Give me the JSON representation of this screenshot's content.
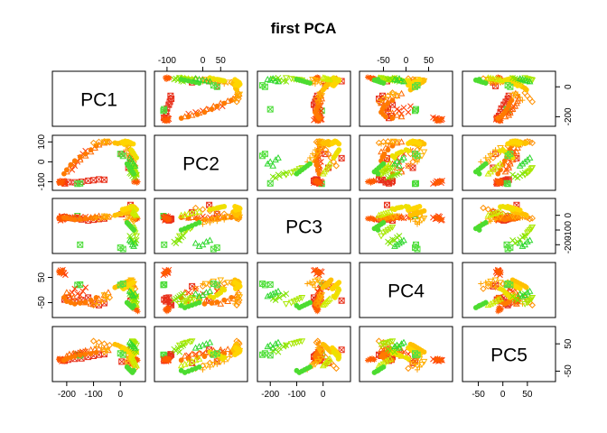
{
  "chart_data": {
    "type": "scatter-matrix",
    "title": "first PCA",
    "variables": [
      "PC1",
      "PC2",
      "PC3",
      "PC4",
      "PC5"
    ],
    "ranges": {
      "PC1": [
        -240,
        80
      ],
      "PC2": [
        -125,
        115
      ],
      "PC3": [
        -235,
        90
      ],
      "PC4": [
        -95,
        95
      ],
      "PC5": [
        -75,
        100
      ]
    },
    "ticks": {
      "PC1": [
        -200,
        -100,
        0
      ],
      "PC2": [
        -100,
        0,
        50
      ],
      "PC3": [
        -200,
        -100,
        0
      ],
      "PC4": [
        -50,
        0,
        50
      ],
      "PC5": [
        -50,
        0,
        50
      ]
    },
    "axis_labels": {
      "bottom": [
        [
          "-200",
          "-100",
          "0"
        ],
        [],
        [
          "-200",
          "-100",
          "0"
        ],
        [],
        [
          "-50",
          "0",
          "50"
        ]
      ],
      "top": [
        [],
        [
          "-100",
          "0",
          "50"
        ],
        [],
        [
          "-50",
          "0",
          "50"
        ],
        []
      ],
      "left": [
        [],
        [
          "-100",
          "0",
          "100"
        ],
        [],
        [
          "-50",
          "50"
        ],
        []
      ],
      "right": [
        [
          "-200",
          "0"
        ],
        [],
        [
          "-200",
          "-100",
          "0"
        ],
        [],
        [
          "-50",
          "50"
        ]
      ]
    },
    "groups": [
      {
        "color": "#e8301a",
        "pch": "square-x",
        "points": [
          [
            -208,
            -108,
            -12,
            -38,
            -12
          ],
          [
            -195,
            -102,
            -18,
            -32,
            -8
          ],
          [
            -170,
            -103,
            -22,
            -45,
            -5
          ],
          [
            -145,
            -100,
            -28,
            -40,
            -3
          ],
          [
            -120,
            -95,
            -35,
            -30,
            2
          ],
          [
            -100,
            -92,
            -30,
            -55,
            6
          ],
          [
            -80,
            -88,
            -26,
            -60,
            10
          ],
          [
            -60,
            -90,
            -22,
            -52,
            12
          ],
          [
            38,
            18,
            70,
            -42,
            28
          ],
          [
            5,
            40,
            8,
            20,
            -15
          ],
          [
            30,
            -30,
            20,
            15,
            -20
          ]
        ]
      },
      {
        "color": "#4ddc3a",
        "pch": "square-x",
        "points": [
          [
            -160,
            -110,
            -5,
            20,
            10
          ],
          [
            -150,
            -108,
            -200,
            22,
            8
          ]
        ]
      },
      {
        "color": "#ff3a00",
        "pch": "x",
        "points": [
          [
            -225,
            -100,
            -20,
            70,
            -5
          ],
          [
            -220,
            -98,
            -10,
            75,
            -8
          ],
          [
            -215,
            -95,
            -30,
            80,
            -10
          ],
          [
            -212,
            -105,
            -25,
            65,
            -12
          ],
          [
            -205,
            -110,
            -15,
            60,
            -6
          ],
          [
            -218,
            -102,
            -5,
            72,
            -14
          ],
          [
            -223,
            -106,
            -35,
            78,
            -9
          ],
          [
            -210,
            -97,
            -22,
            68,
            -11
          ],
          [
            -180,
            -40,
            -18,
            -10,
            8
          ],
          [
            -170,
            -20,
            -12,
            5,
            12
          ],
          [
            -160,
            0,
            -8,
            -15,
            15
          ],
          [
            -150,
            20,
            -15,
            -20,
            18
          ],
          [
            -140,
            40,
            -20,
            -5,
            20
          ],
          [
            -130,
            55,
            -10,
            10,
            22
          ]
        ]
      },
      {
        "color": "#ff5a00",
        "pch": "asterisk",
        "points": [
          [
            -230,
            -100,
            -20,
            75,
            -6
          ],
          [
            -226,
            -103,
            -15,
            70,
            -4
          ],
          [
            -222,
            -99,
            -25,
            72,
            -10
          ],
          [
            -218,
            -108,
            -12,
            66,
            -8
          ],
          [
            -214,
            -96,
            -28,
            79,
            -12
          ],
          [
            -228,
            -106,
            -18,
            68,
            -7
          ],
          [
            60,
            -95,
            -25,
            -80,
            -5
          ],
          [
            55,
            -98,
            -30,
            -70,
            -8
          ],
          [
            50,
            -102,
            -20,
            -75,
            -3
          ],
          [
            65,
            -100,
            -22,
            -85,
            -10
          ],
          [
            58,
            -93,
            -27,
            -72,
            -6
          ],
          [
            62,
            -105,
            -18,
            -78,
            -9
          ]
        ]
      },
      {
        "color": "#ff6a00",
        "pch": "triangle",
        "points": [
          [
            -200,
            -50,
            -10,
            -10,
            5
          ],
          [
            -190,
            -30,
            -15,
            -20,
            12
          ],
          [
            -175,
            -10,
            -20,
            -30,
            15
          ],
          [
            -150,
            10,
            -25,
            -40,
            20
          ],
          [
            -130,
            30,
            -20,
            -50,
            25
          ],
          [
            -110,
            50,
            -15,
            -55,
            28
          ],
          [
            -95,
            70,
            -10,
            -45,
            30
          ],
          [
            -80,
            85,
            -5,
            -35,
            32
          ],
          [
            -60,
            95,
            -8,
            -20,
            30
          ],
          [
            -45,
            100,
            -12,
            -10,
            26
          ]
        ]
      },
      {
        "color": "#ff7a00",
        "pch": "circle",
        "points": [
          [
            -210,
            -60,
            -15,
            -30,
            -10
          ],
          [
            -200,
            -40,
            -20,
            -45,
            -5
          ],
          [
            -185,
            -15,
            -25,
            -50,
            0
          ],
          [
            -170,
            5,
            -30,
            -55,
            4
          ],
          [
            -150,
            25,
            -26,
            -52,
            8
          ],
          [
            -130,
            40,
            -20,
            -48,
            12
          ],
          [
            -110,
            60,
            -18,
            -40,
            14
          ],
          [
            -90,
            80,
            -14,
            -30,
            18
          ]
        ]
      },
      {
        "color": "#ff9000",
        "pch": "diamond",
        "points": [
          [
            -100,
            95,
            -20,
            -60,
            60
          ],
          [
            -80,
            100,
            -25,
            -50,
            55
          ],
          [
            -60,
            102,
            -15,
            -40,
            50
          ],
          [
            -40,
            98,
            -10,
            -30,
            45
          ],
          [
            40,
            40,
            20,
            10,
            -10
          ],
          [
            45,
            20,
            30,
            20,
            -20
          ],
          [
            50,
            0,
            40,
            15,
            -30
          ],
          [
            55,
            -20,
            50,
            5,
            -40
          ],
          [
            35,
            60,
            10,
            25,
            0
          ],
          [
            30,
            80,
            0,
            30,
            10
          ]
        ]
      },
      {
        "color": "#ffa000",
        "pch": "plus",
        "points": [
          [
            -90,
            90,
            -15,
            -55,
            40
          ],
          [
            -70,
            92,
            -20,
            -45,
            35
          ],
          [
            -50,
            95,
            -10,
            -35,
            30
          ],
          [
            20,
            60,
            -30,
            10,
            -15
          ],
          [
            25,
            40,
            -40,
            20,
            -25
          ],
          [
            30,
            20,
            -50,
            30,
            -35
          ],
          [
            35,
            0,
            -60,
            25,
            -45
          ]
        ]
      },
      {
        "color": "#ffb000",
        "pch": "triangle-down",
        "points": [
          [
            -60,
            100,
            -5,
            -20,
            20
          ],
          [
            -50,
            103,
            -12,
            -28,
            25
          ],
          [
            30,
            70,
            -10,
            30,
            -5
          ],
          [
            40,
            50,
            -20,
            40,
            -15
          ],
          [
            45,
            30,
            -30,
            35,
            -25
          ],
          [
            50,
            10,
            -40,
            25,
            -30
          ]
        ]
      },
      {
        "color": "#ffc000",
        "pch": "circle",
        "points": [
          [
            0,
            95,
            10,
            20,
            40
          ],
          [
            10,
            100,
            15,
            25,
            35
          ],
          [
            20,
            102,
            20,
            30,
            30
          ],
          [
            30,
            98,
            25,
            35,
            25
          ],
          [
            -10,
            92,
            5,
            15,
            45
          ],
          [
            -20,
            95,
            0,
            10,
            48
          ],
          [
            40,
            90,
            30,
            40,
            20
          ],
          [
            25,
            85,
            22,
            28,
            28
          ],
          [
            15,
            88,
            18,
            22,
            33
          ],
          [
            5,
            96,
            12,
            18,
            38
          ]
        ]
      },
      {
        "color": "#ffd500",
        "pch": "circle",
        "points": [
          [
            8,
            100,
            40,
            10,
            30
          ],
          [
            18,
            104,
            45,
            15,
            25
          ],
          [
            28,
            102,
            50,
            20,
            20
          ],
          [
            38,
            96,
            55,
            25,
            15
          ],
          [
            48,
            90,
            60,
            30,
            10
          ],
          [
            12,
            92,
            35,
            5,
            35
          ],
          [
            22,
            97,
            42,
            12,
            28
          ],
          [
            32,
            99,
            48,
            18,
            22
          ]
        ]
      },
      {
        "color": "#eee000",
        "pch": "circle",
        "points": [
          [
            40,
            60,
            60,
            0,
            0
          ],
          [
            45,
            50,
            55,
            -10,
            5
          ],
          [
            50,
            40,
            50,
            -20,
            10
          ],
          [
            55,
            30,
            45,
            -30,
            15
          ],
          [
            60,
            20,
            40,
            -25,
            20
          ],
          [
            42,
            55,
            58,
            5,
            -5
          ],
          [
            48,
            45,
            52,
            -15,
            8
          ]
        ]
      },
      {
        "color": "#ccee00",
        "pch": "triangle",
        "points": [
          [
            50,
            -20,
            20,
            -40,
            -10
          ],
          [
            55,
            -40,
            10,
            -50,
            -20
          ],
          [
            60,
            -60,
            0,
            -60,
            -30
          ],
          [
            52,
            -30,
            15,
            -45,
            -15
          ],
          [
            58,
            -50,
            5,
            -55,
            -25
          ],
          [
            48,
            -10,
            25,
            -35,
            -5
          ]
        ]
      },
      {
        "color": "#a8e800",
        "pch": "triangle-down",
        "points": [
          [
            45,
            -30,
            -80,
            -30,
            60
          ],
          [
            50,
            -45,
            -100,
            -40,
            55
          ],
          [
            55,
            -55,
            -120,
            -50,
            50
          ],
          [
            60,
            -65,
            -140,
            -55,
            45
          ],
          [
            48,
            -35,
            -90,
            -35,
            58
          ],
          [
            52,
            -50,
            -110,
            -45,
            52
          ]
        ]
      },
      {
        "color": "#80e400",
        "pch": "x",
        "points": [
          [
            40,
            -60,
            -150,
            -20,
            40
          ],
          [
            45,
            -70,
            -165,
            -30,
            35
          ],
          [
            50,
            -80,
            -180,
            -40,
            30
          ],
          [
            55,
            -75,
            -190,
            -35,
            25
          ],
          [
            60,
            -65,
            -170,
            -25,
            20
          ],
          [
            35,
            -55,
            -140,
            -15,
            45
          ]
        ]
      },
      {
        "color": "#4cdc30",
        "pch": "circle",
        "points": [
          [
            30,
            -20,
            -60,
            -55,
            -40
          ],
          [
            35,
            -30,
            -70,
            -60,
            -45
          ],
          [
            40,
            -40,
            -80,
            -65,
            -50
          ],
          [
            45,
            -50,
            -90,
            -70,
            -55
          ],
          [
            25,
            -10,
            -50,
            -50,
            -35
          ],
          [
            50,
            -60,
            -100,
            -62,
            -48
          ]
        ]
      },
      {
        "color": "#30d830",
        "pch": "triangle",
        "points": [
          [
            40,
            10,
            -180,
            -10,
            50
          ],
          [
            45,
            0,
            -200,
            -20,
            45
          ],
          [
            50,
            -10,
            -210,
            -25,
            40
          ],
          [
            55,
            -20,
            -190,
            -15,
            35
          ],
          [
            35,
            20,
            -170,
            -5,
            55
          ]
        ]
      },
      {
        "color": "#55e040",
        "pch": "square-x",
        "points": [
          [
            0,
            40,
            -220,
            20,
            15
          ],
          [
            10,
            30,
            -230,
            25,
            10
          ]
        ]
      }
    ]
  }
}
